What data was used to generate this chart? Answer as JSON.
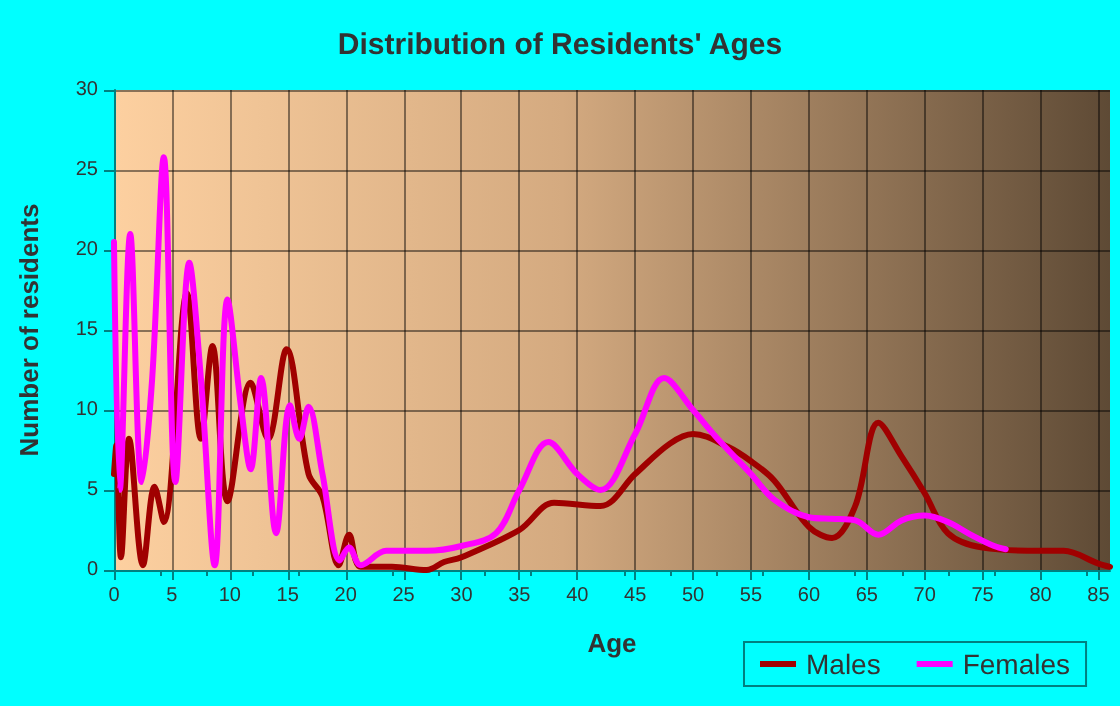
{
  "chart_data": {
    "type": "line",
    "title": "Distribution of Residents' Ages",
    "xlabel": "Age",
    "ylabel": "Number of residents",
    "xlim": [
      0,
      86
    ],
    "xticks": [
      0,
      5,
      10,
      15,
      20,
      25,
      30,
      35,
      40,
      45,
      50,
      55,
      60,
      65,
      70,
      75,
      80,
      85
    ],
    "ylim": [
      0,
      30
    ],
    "yticks": [
      0,
      5,
      10,
      15,
      20,
      25,
      30
    ],
    "grid": true,
    "legend": "bottom",
    "marker": "none",
    "line_style": "solid",
    "series": [
      {
        "name": "Males",
        "color": "#a00000",
        "x": [
          0,
          0.2,
          0.6,
          1.3,
          2.5,
          3.5,
          4.3,
          6.3,
          7.5,
          8.5,
          9.8,
          11.8,
          13.3,
          14.9,
          16.8,
          18,
          19.4,
          20.3,
          21.3,
          24,
          27,
          28.5,
          30,
          35,
          38,
          42,
          45,
          48,
          50,
          53,
          55,
          57,
          60,
          62,
          64,
          66,
          68,
          70,
          72,
          75,
          80,
          82,
          85,
          86
        ],
        "values": [
          6,
          7.8,
          0.8,
          8.2,
          0.3,
          5.2,
          3,
          17.3,
          8.2,
          14,
          4.3,
          11.7,
          8.2,
          13.8,
          6,
          4.6,
          0.3,
          2.2,
          0.2,
          0.2,
          0,
          0.5,
          0.8,
          2.5,
          4.2,
          4,
          6,
          7.9,
          8.5,
          7.7,
          6.8,
          5.6,
          2.7,
          2,
          4,
          9.2,
          7.1,
          4.8,
          2.3,
          1.4,
          1.2,
          1.2,
          0.4,
          0.2
        ]
      },
      {
        "name": "Females",
        "color": "#ff00ff",
        "x": [
          0,
          0.5,
          1.4,
          2.4,
          3.3,
          4.3,
          5.3,
          6.5,
          7.5,
          8.7,
          9.8,
          11,
          11.8,
          12.7,
          14,
          15.2,
          16,
          16.8,
          18,
          19.5,
          20.3,
          21.3,
          23.5,
          27,
          30,
          33,
          35,
          37.5,
          40,
          42,
          45,
          47.5,
          50,
          52,
          55,
          57,
          60,
          62,
          64,
          66,
          68,
          70,
          72,
          74,
          76,
          77
        ],
        "values": [
          20.5,
          5,
          21,
          5.5,
          12,
          25.8,
          5.5,
          19.2,
          12,
          0.3,
          16.9,
          10,
          6.3,
          12,
          2.3,
          10.3,
          8.2,
          10.2,
          6,
          0.6,
          1.4,
          0.3,
          1.2,
          1.2,
          1.5,
          2.3,
          5,
          8,
          6,
          5,
          8.5,
          12,
          10,
          8.3,
          6,
          4.4,
          3.3,
          3.2,
          3.1,
          2.2,
          3.1,
          3.4,
          3,
          2.2,
          1.5,
          1.3
        ]
      }
    ]
  }
}
